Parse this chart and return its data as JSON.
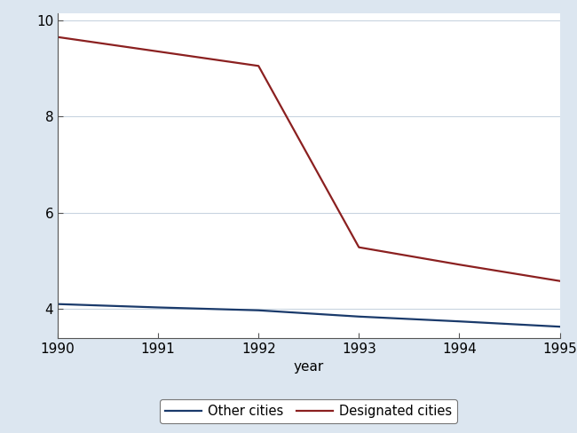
{
  "years": [
    1990,
    1991,
    1992,
    1993,
    1994,
    1995
  ],
  "designated_cities": [
    9.65,
    9.35,
    9.05,
    5.28,
    4.92,
    4.58
  ],
  "other_cities": [
    4.1,
    4.03,
    3.97,
    3.84,
    3.74,
    3.63
  ],
  "designated_color": "#8B2020",
  "other_color": "#1A3A6B",
  "background_color": "#DCE6F0",
  "plot_bg_color": "#FFFFFF",
  "xlabel": "year",
  "ylim_min": 3.4,
  "ylim_max": 10.15,
  "yticks": [
    4,
    6,
    8,
    10
  ],
  "xticks": [
    1990,
    1991,
    1992,
    1993,
    1994,
    1995
  ],
  "legend_other": "Other cities",
  "legend_designated": "Designated cities",
  "line_width": 1.6,
  "grid_color": "#C8D4E0",
  "spine_color": "#555555",
  "tick_label_size": 11,
  "xlabel_size": 11
}
